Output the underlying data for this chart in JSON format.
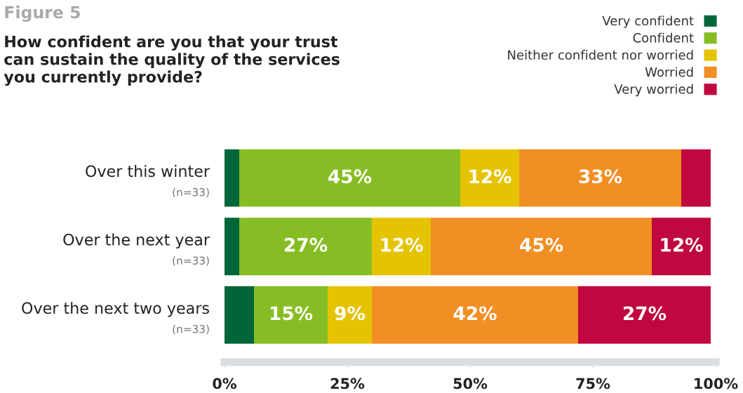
{
  "chart_data": {
    "type": "bar",
    "orientation": "horizontal",
    "stacked": true,
    "title": "Figure 5",
    "subtitle": "How confident are you that your trust can sustain the quality of the services you currently provide?",
    "categories": [
      "Over this winter\n(n=33)",
      "Over the next year\n(n=33)",
      "Over the next two years\n(n=33)"
    ],
    "series": [
      {
        "name": "Very confident",
        "color": "#00663a",
        "values": [
          3,
          3,
          6
        ],
        "value_labels": [
          null,
          null,
          null
        ]
      },
      {
        "name": "Confident",
        "color": "#87bd24",
        "values": [
          45,
          27,
          15
        ],
        "value_labels": [
          "45%",
          "27%",
          "15%"
        ]
      },
      {
        "name": "Neither confident nor worried",
        "color": "#e5c300",
        "values": [
          12,
          12,
          9
        ],
        "value_labels": [
          "12%",
          "12%",
          "9%"
        ]
      },
      {
        "name": "Worried",
        "color": "#f18f24",
        "values": [
          33,
          45,
          42
        ],
        "value_labels": [
          "33%",
          "45%",
          "42%"
        ]
      },
      {
        "name": "Very worried",
        "color": "#c0073f",
        "values": [
          6,
          12,
          27
        ],
        "value_labels": [
          null,
          "12%",
          "27%"
        ]
      }
    ],
    "xlim": [
      0,
      100
    ],
    "xticks": [
      {
        "value": 0,
        "label": "0%"
      },
      {
        "value": 25,
        "label": "25%"
      },
      {
        "value": 50,
        "label": "50%"
      },
      {
        "value": 75,
        "label": "75%"
      },
      {
        "value": 100,
        "label": "100%"
      }
    ],
    "legend": "top right",
    "grid": false
  }
}
